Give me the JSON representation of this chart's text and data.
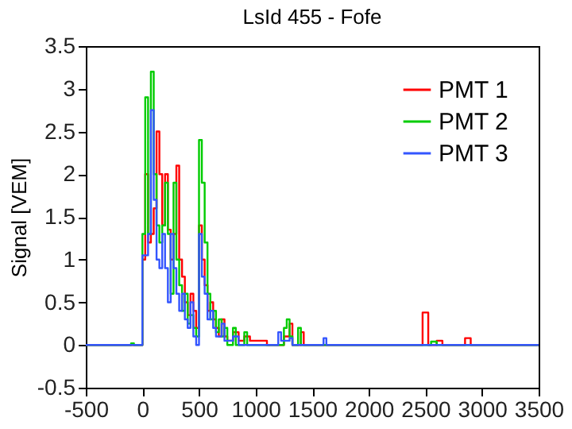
{
  "chart_data": {
    "type": "step",
    "title": "LsId 455 - Fofe",
    "ylabel": "Signal [VEM]",
    "xlim": [
      -500,
      3500
    ],
    "xticks": [
      -500,
      0,
      500,
      1000,
      1500,
      2000,
      2500,
      3000,
      3500
    ],
    "ylim": [
      -0.5,
      3.5
    ],
    "yticks": [
      -0.5,
      0,
      0.5,
      1,
      1.5,
      2,
      2.5,
      3,
      3.5
    ],
    "legend": "top right",
    "grid": false,
    "series": [
      {
        "name": "PMT 1",
        "color": "#ff0000",
        "x": [
          -500,
          0,
          25,
          50,
          75,
          100,
          125,
          150,
          175,
          200,
          225,
          250,
          275,
          300,
          325,
          350,
          375,
          400,
          425,
          450,
          475,
          500,
          525,
          550,
          575,
          600,
          625,
          650,
          675,
          700,
          725,
          750,
          800,
          850,
          900,
          950,
          1100,
          1250,
          1300,
          1325,
          1400,
          1425,
          2475,
          2525,
          2600,
          2650,
          2850,
          2900,
          3500
        ],
        "values": [
          0,
          1.0,
          2.0,
          1.2,
          1.3,
          1.6,
          2.5,
          2.0,
          1.4,
          2.0,
          1.35,
          1.0,
          1.3,
          2.1,
          1.0,
          0.8,
          0.5,
          0.35,
          0.6,
          0.4,
          0.2,
          1.4,
          1.0,
          0.7,
          0.4,
          0.5,
          0.3,
          0.2,
          0.1,
          0.3,
          0.1,
          0.05,
          0.15,
          0.05,
          0.1,
          0.05,
          0,
          0.1,
          0.25,
          0,
          0.15,
          0,
          0.38,
          0,
          0.05,
          0,
          0.08,
          0,
          0
        ]
      },
      {
        "name": "PMT 2",
        "color": "#00cc00",
        "x": [
          -500,
          -100,
          -75,
          0,
          25,
          50,
          75,
          100,
          125,
          150,
          175,
          200,
          225,
          250,
          275,
          300,
          325,
          350,
          375,
          400,
          425,
          450,
          475,
          500,
          525,
          550,
          575,
          600,
          625,
          650,
          675,
          700,
          725,
          750,
          800,
          825,
          900,
          925,
          1250,
          1275,
          1300,
          1325,
          1375,
          1400,
          2550,
          2600,
          3500
        ],
        "values": [
          0,
          0.02,
          0,
          1.3,
          2.9,
          1.3,
          3.2,
          2.0,
          1.4,
          1.2,
          1.4,
          1.9,
          1.3,
          0.6,
          1.9,
          1.0,
          0.7,
          0.4,
          0.6,
          0.25,
          0.35,
          0.2,
          0.1,
          2.4,
          1.9,
          1.2,
          0.6,
          0.3,
          0.4,
          0.15,
          0.3,
          0.1,
          0.2,
          0,
          0.2,
          0,
          0.15,
          0,
          0.2,
          0.3,
          0.1,
          0,
          0.2,
          0,
          0.04,
          0,
          0
        ]
      },
      {
        "name": "PMT 3",
        "color": "#3355ff",
        "x": [
          -500,
          0,
          50,
          75,
          100,
          125,
          150,
          175,
          200,
          225,
          250,
          275,
          300,
          325,
          350,
          375,
          400,
          425,
          450,
          475,
          500,
          525,
          550,
          575,
          600,
          625,
          650,
          700,
          725,
          800,
          850,
          1200,
          1225,
          1300,
          1325,
          1600,
          1625,
          3500
        ],
        "values": [
          0,
          1.05,
          1.3,
          2.75,
          1.7,
          1.0,
          0.9,
          1.3,
          0.9,
          0.5,
          1.3,
          0.9,
          0.6,
          0.4,
          0.6,
          0.3,
          0.2,
          0.5,
          0.1,
          0.0,
          1.3,
          0.8,
          0.6,
          0.3,
          0.4,
          0.2,
          0.1,
          0.25,
          0.05,
          0.1,
          0,
          0.15,
          0.05,
          0.08,
          0,
          0.08,
          0,
          0
        ]
      }
    ]
  }
}
